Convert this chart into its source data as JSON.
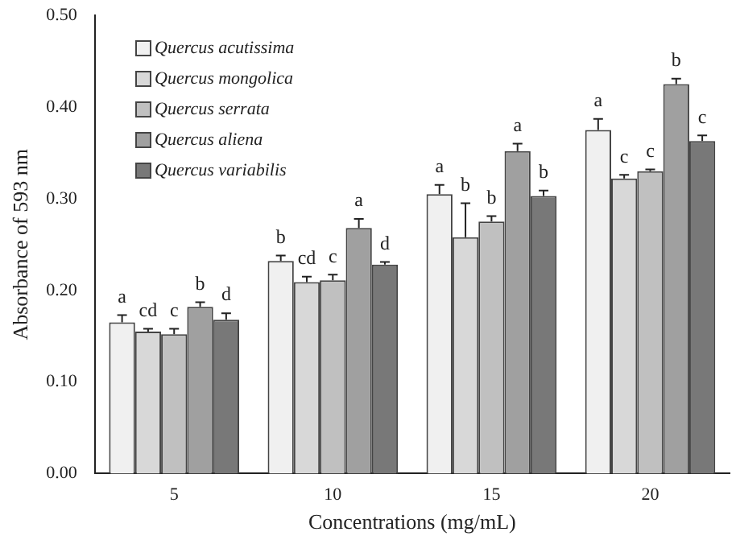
{
  "chart_data": {
    "type": "bar",
    "xlabel": "Concentrations (mg/mL)",
    "ylabel": "Absorbance of 593 nm",
    "categories": [
      "5",
      "10",
      "15",
      "20"
    ],
    "series": [
      {
        "name": "Quercus acutissima",
        "color": "#f0f0f0",
        "values": [
          0.165,
          0.232,
          0.305,
          0.375
        ],
        "errors": [
          0.008,
          0.006,
          0.01,
          0.012
        ],
        "value_labels": [
          "a",
          "b",
          "a",
          "a"
        ]
      },
      {
        "name": "Quercus mongolica",
        "color": "#d8d8d8",
        "values": [
          0.155,
          0.209,
          0.258,
          0.322
        ],
        "errors": [
          0.003,
          0.006,
          0.037,
          0.004
        ],
        "value_labels": [
          "cd",
          "cd",
          "b",
          "c"
        ]
      },
      {
        "name": "Quercus serrata",
        "color": "#c0c0c0",
        "values": [
          0.152,
          0.211,
          0.275,
          0.33
        ],
        "errors": [
          0.006,
          0.006,
          0.006,
          0.002
        ],
        "value_labels": [
          "c",
          "c",
          "b",
          "c"
        ]
      },
      {
        "name": "Quercus aliena",
        "color": "#a0a0a0",
        "values": [
          0.182,
          0.268,
          0.352,
          0.425
        ],
        "errors": [
          0.005,
          0.01,
          0.008,
          0.006
        ],
        "value_labels": [
          "b",
          "a",
          "a",
          "b"
        ]
      },
      {
        "name": "Quercus variabilis",
        "color": "#787878",
        "values": [
          0.168,
          0.228,
          0.303,
          0.363
        ],
        "errors": [
          0.007,
          0.003,
          0.006,
          0.006
        ],
        "value_labels": [
          "d",
          "d",
          "b",
          "c"
        ]
      }
    ],
    "ylim": [
      0,
      0.5
    ],
    "yticks": [
      {
        "value": 0,
        "label": "0.00"
      },
      {
        "value": 0.1,
        "label": "0.10"
      },
      {
        "value": 0.2,
        "label": "0.20"
      },
      {
        "value": 0.3,
        "label": "0.30"
      },
      {
        "value": 0.4,
        "label": "0.40"
      },
      {
        "value": 0.5,
        "label": "0.50"
      }
    ],
    "grid": false,
    "legend": "top left"
  }
}
